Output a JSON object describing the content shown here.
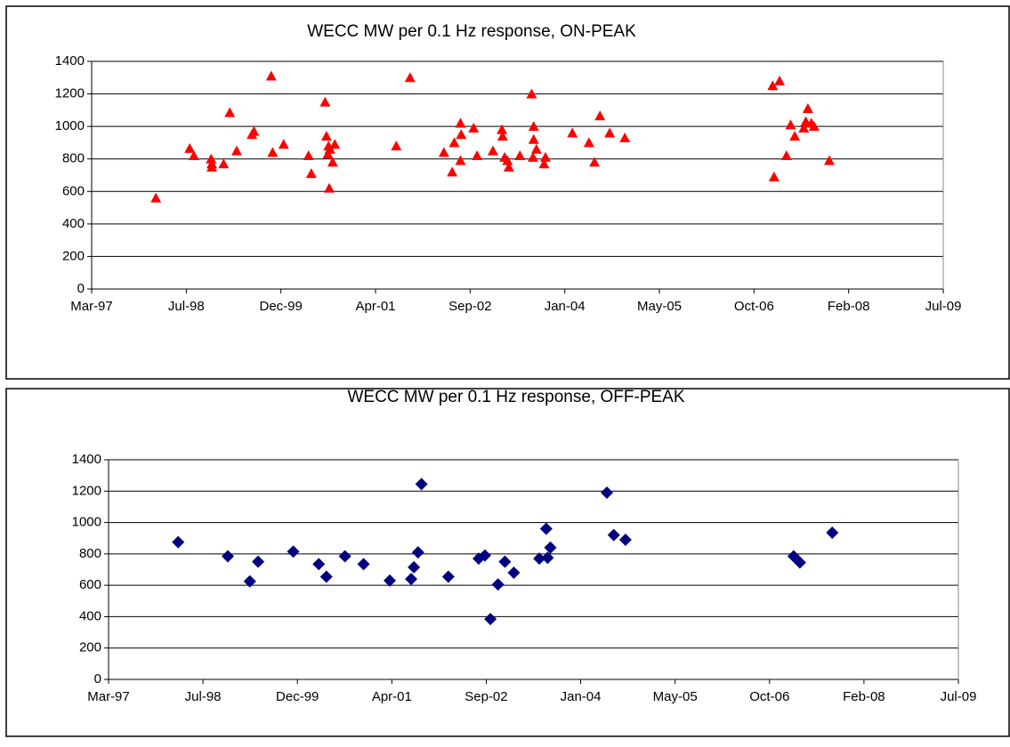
{
  "chart_data": [
    {
      "type": "scatter",
      "title": "WECC MW per 0.1 Hz response, ON-PEAK",
      "marker": "triangle",
      "color": "#ff0000",
      "grid": true,
      "xlim": [
        1997.17,
        2009.5
      ],
      "ylim": [
        0,
        1400
      ],
      "xticks": [
        {
          "value": 1997.17,
          "label": "Mar-97"
        },
        {
          "value": 1998.54,
          "label": "Jul-98"
        },
        {
          "value": 1999.91,
          "label": "Dec-99"
        },
        {
          "value": 2001.28,
          "label": "Apr-01"
        },
        {
          "value": 2002.65,
          "label": "Sep-02"
        },
        {
          "value": 2004.02,
          "label": "Jan-04"
        },
        {
          "value": 2005.39,
          "label": "May-05"
        },
        {
          "value": 2006.76,
          "label": "Oct-06"
        },
        {
          "value": 2008.13,
          "label": "Feb-08"
        },
        {
          "value": 2009.5,
          "label": "Jul-09"
        }
      ],
      "yticks": [
        0,
        200,
        400,
        600,
        800,
        1000,
        1200,
        1400
      ],
      "x": [
        1998.1,
        1998.59,
        1998.65,
        1998.9,
        1998.91,
        1998.91,
        1999.08,
        1999.17,
        1999.27,
        1999.49,
        1999.52,
        1999.77,
        1999.79,
        1999.95,
        2000.31,
        2000.35,
        2000.55,
        2000.57,
        2000.59,
        2000.6,
        2000.61,
        2000.62,
        2000.66,
        2000.69,
        2001.58,
        2001.78,
        2002.27,
        2002.39,
        2002.42,
        2002.51,
        2002.52,
        2002.51,
        2002.7,
        2002.75,
        2002.98,
        2003.11,
        2003.12,
        2003.15,
        2003.19,
        2003.21,
        2003.37,
        2003.54,
        2003.56,
        2003.57,
        2003.57,
        2003.61,
        2003.72,
        2003.74,
        2004.13,
        2004.37,
        2004.45,
        2004.53,
        2004.67,
        2004.89,
        2007.03,
        2007.05,
        2007.13,
        2007.23,
        2007.29,
        2007.35,
        2007.48,
        2007.51,
        2007.54,
        2007.59,
        2007.63,
        2007.85
      ],
      "values": [
        560,
        865,
        820,
        800,
        770,
        750,
        770,
        1085,
        850,
        950,
        970,
        1310,
        840,
        890,
        820,
        710,
        1150,
        940,
        830,
        880,
        620,
        860,
        780,
        890,
        880,
        1300,
        840,
        720,
        900,
        1020,
        950,
        790,
        990,
        820,
        850,
        980,
        940,
        810,
        790,
        750,
        820,
        1200,
        810,
        1000,
        920,
        860,
        770,
        810,
        960,
        900,
        780,
        1065,
        960,
        930,
        1250,
        690,
        1280,
        820,
        1010,
        940,
        990,
        1030,
        1110,
        1020,
        1000,
        790
      ]
    },
    {
      "type": "scatter",
      "title": "WECC MW per 0.1 Hz response, OFF-PEAK",
      "marker": "diamond",
      "color": "#000080",
      "grid": true,
      "xlim": [
        1997.17,
        2009.5
      ],
      "ylim": [
        0,
        1400
      ],
      "xticks": [
        {
          "value": 1997.17,
          "label": "Mar-97"
        },
        {
          "value": 1998.54,
          "label": "Jul-98"
        },
        {
          "value": 1999.91,
          "label": "Dec-99"
        },
        {
          "value": 2001.28,
          "label": "Apr-01"
        },
        {
          "value": 2002.65,
          "label": "Sep-02"
        },
        {
          "value": 2004.02,
          "label": "Jan-04"
        },
        {
          "value": 2005.39,
          "label": "May-05"
        },
        {
          "value": 2006.76,
          "label": "Oct-06"
        },
        {
          "value": 2008.13,
          "label": "Feb-08"
        },
        {
          "value": 2009.5,
          "label": "Jul-09"
        }
      ],
      "yticks": [
        0,
        200,
        400,
        600,
        800,
        1000,
        1200,
        1400
      ],
      "x": [
        1998.18,
        1998.9,
        1999.22,
        1999.34,
        1999.85,
        2000.22,
        2000.33,
        2000.6,
        2000.87,
        2001.25,
        2001.56,
        2001.6,
        2001.66,
        2001.71,
        2002.1,
        2002.54,
        2002.63,
        2002.71,
        2002.82,
        2002.92,
        2003.05,
        2003.42,
        2003.52,
        2003.54,
        2003.58,
        2004.4,
        2004.5,
        2004.67,
        2007.11,
        2007.2,
        2007.67
      ],
      "values": [
        875,
        785,
        625,
        750,
        815,
        735,
        655,
        785,
        735,
        630,
        640,
        715,
        810,
        1245,
        655,
        770,
        790,
        385,
        605,
        750,
        680,
        770,
        960,
        775,
        840,
        1190,
        920,
        890,
        785,
        745,
        935
      ]
    }
  ]
}
